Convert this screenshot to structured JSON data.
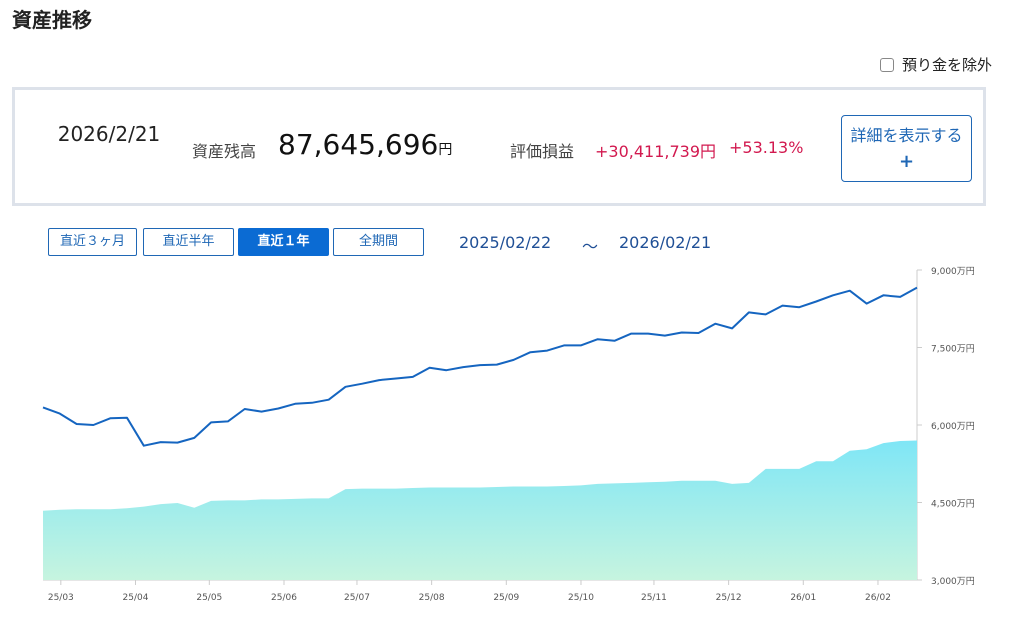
{
  "page": {
    "title": "資産推移"
  },
  "options": {
    "exclude_deposit_label": "預り金を除外"
  },
  "summary": {
    "date": "2026/2/21",
    "balance_label": "資産残高",
    "balance_value": "87,645,696",
    "balance_unit": "円",
    "pl_label": "評価損益",
    "pl_value": "+30,411,739円",
    "pl_percent": "+53.13%",
    "detail_button_label": "詳細を表示する",
    "detail_button_icon": "plus-icon"
  },
  "period_tabs": [
    {
      "label": "直近３ヶ月",
      "active": false
    },
    {
      "label": "直近半年",
      "active": false
    },
    {
      "label": "直近１年",
      "active": true
    },
    {
      "label": "全期間",
      "active": false
    }
  ],
  "range": {
    "start": "2025/02/22",
    "separator": "～",
    "end": "2026/02/21"
  },
  "colors": {
    "accent": "#0b6bd3",
    "line": "#1565c0",
    "gain": "#d2194f",
    "area_top": "#7fe6f6",
    "area_bottom": "#c6f4df"
  },
  "chart_data": {
    "type": "line",
    "x_axis_ticks": [
      "25/03",
      "25/04",
      "25/05",
      "25/06",
      "25/07",
      "25/08",
      "25/09",
      "25/10",
      "25/11",
      "25/12",
      "26/01",
      "26/02"
    ],
    "y_axis": {
      "unit": "万円",
      "ticks": [
        "9,000万円",
        "7,500万円",
        "6,000万円",
        "4,500万円",
        "3,000万円"
      ],
      "min": 3000,
      "max": 9000,
      "position": "right"
    },
    "x_range_weeks": [
      0,
      51.5
    ],
    "series": [
      {
        "style": "line",
        "values": [
          6340,
          6220,
          6020,
          6000,
          6130,
          6140,
          5600,
          5670,
          5660,
          5750,
          6050,
          6070,
          6310,
          6260,
          6320,
          6410,
          6430,
          6490,
          6740,
          6800,
          6870,
          6900,
          6930,
          7110,
          7060,
          7120,
          7160,
          7170,
          7260,
          7410,
          7440,
          7540,
          7540,
          7660,
          7630,
          7770,
          7770,
          7730,
          7790,
          7780,
          7960,
          7870,
          8180,
          8140,
          8310,
          8280,
          8390,
          8510,
          8600,
          8350,
          8510,
          8480,
          8660
        ]
      },
      {
        "style": "area",
        "values": [
          4340,
          4360,
          4370,
          4370,
          4370,
          4390,
          4420,
          4470,
          4490,
          4400,
          4530,
          4540,
          4540,
          4560,
          4560,
          4570,
          4580,
          4580,
          4760,
          4770,
          4770,
          4770,
          4780,
          4790,
          4790,
          4790,
          4790,
          4800,
          4810,
          4810,
          4810,
          4820,
          4830,
          4860,
          4870,
          4880,
          4890,
          4900,
          4920,
          4920,
          4920,
          4860,
          4880,
          5150,
          5150,
          5150,
          5300,
          5300,
          5500,
          5530,
          5650,
          5690,
          5700
        ]
      }
    ],
    "grid": false,
    "legend": "none"
  }
}
